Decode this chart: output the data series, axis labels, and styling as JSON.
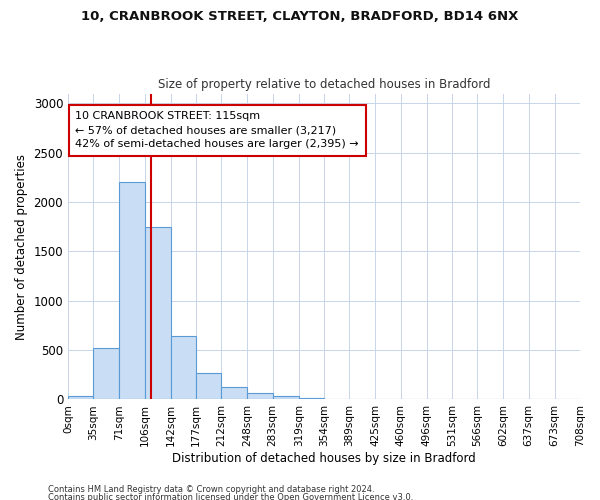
{
  "title1": "10, CRANBROOK STREET, CLAYTON, BRADFORD, BD14 6NX",
  "title2": "Size of property relative to detached houses in Bradford",
  "xlabel": "Distribution of detached houses by size in Bradford",
  "ylabel": "Number of detached properties",
  "footnote1": "Contains HM Land Registry data © Crown copyright and database right 2024.",
  "footnote2": "Contains public sector information licensed under the Open Government Licence v3.0.",
  "annotation_line1": "10 CRANBROOK STREET: 115sqm",
  "annotation_line2": "← 57% of detached houses are smaller (3,217)",
  "annotation_line3": "42% of semi-detached houses are larger (2,395) →",
  "property_size": 115,
  "bin_edges": [
    0,
    35,
    71,
    106,
    142,
    177,
    212,
    248,
    283,
    319,
    354,
    389,
    425,
    460,
    496,
    531,
    566,
    602,
    637,
    673,
    708
  ],
  "bar_heights": [
    30,
    520,
    2200,
    1750,
    640,
    270,
    130,
    70,
    35,
    15,
    8,
    3,
    2,
    1,
    0,
    0,
    0,
    0,
    0,
    0
  ],
  "bar_color": "#c9ddf5",
  "bar_edge_color": "#5b9bd5",
  "vline_color": "#cc0000",
  "annotation_box_color": "#cc0000",
  "ylim": [
    0,
    3100
  ],
  "yticks": [
    0,
    500,
    1000,
    1500,
    2000,
    2500,
    3000
  ],
  "background_color": "#ffffff",
  "grid_color": "#c8d4e8"
}
